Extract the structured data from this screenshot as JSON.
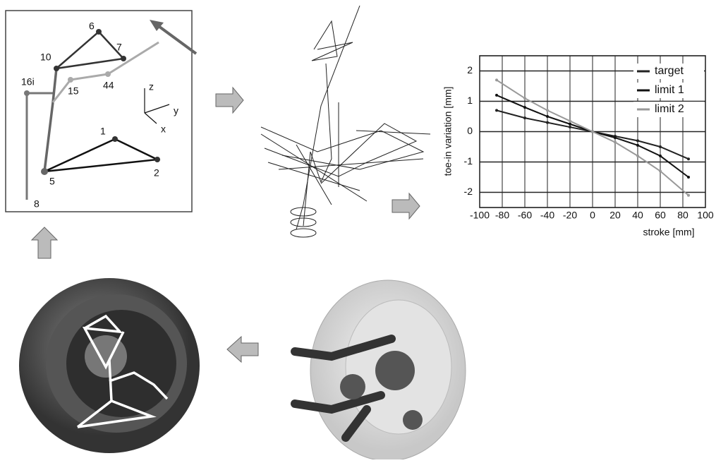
{
  "diagram": {
    "labels": [
      "6",
      "7",
      "10",
      "16i",
      "15",
      "44",
      "1",
      "2",
      "5",
      "8",
      "z",
      "y",
      "x"
    ]
  },
  "chart_data": {
    "type": "line",
    "x_label": "stroke [mm]",
    "y_label": "toe-in variation [mm]",
    "x": [
      -85,
      -60,
      -40,
      -20,
      0,
      20,
      40,
      60,
      85
    ],
    "series": [
      {
        "name": "target",
        "color": "#222222",
        "values": [
          0.7,
          0.45,
          0.3,
          0.15,
          0,
          -0.15,
          -0.3,
          -0.5,
          -0.9
        ]
      },
      {
        "name": "limit 1",
        "color": "#111111",
        "values": [
          1.2,
          0.8,
          0.5,
          0.25,
          0,
          -0.2,
          -0.45,
          -0.8,
          -1.5
        ]
      },
      {
        "name": "limit 2",
        "color": "#999999",
        "values": [
          1.7,
          1.1,
          0.7,
          0.35,
          0,
          -0.35,
          -0.8,
          -1.3,
          -2.1
        ]
      }
    ],
    "xlim": [
      -100,
      100
    ],
    "xticks": [
      -100,
      -80,
      -60,
      -40,
      -20,
      0,
      20,
      40,
      60,
      80,
      100
    ],
    "ylim": [
      -2.5,
      2.5
    ],
    "yticks": [
      -2,
      -1,
      0,
      1,
      2
    ],
    "grid": true
  }
}
